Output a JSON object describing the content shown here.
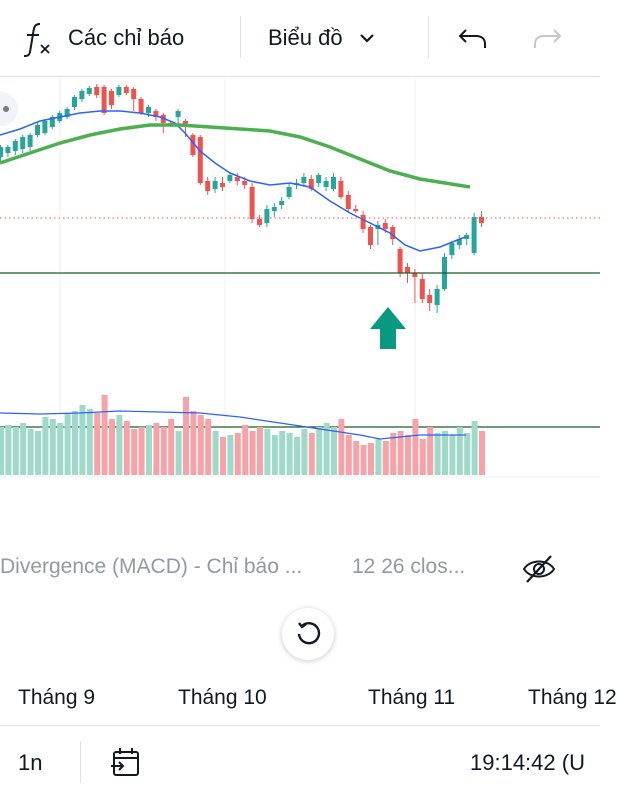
{
  "toolbar": {
    "indicators_label": "Các chỉ báo",
    "chart_type_label": "Biểu đồ",
    "icons": [
      "function-icon",
      "chevron-down-icon",
      "undo-icon",
      "redo-icon"
    ]
  },
  "chart_data": {
    "type": "candlestick",
    "price_scale_labels_visible": false,
    "series": [
      {
        "name": "",
        "kind": "ma",
        "color": "#2962ff"
      },
      {
        "name": "",
        "kind": "ma",
        "color": "#4caf50"
      },
      {
        "name": "",
        "kind": "volume",
        "up_color": "#9fd9c8",
        "down_color": "#f5a3a8"
      }
    ],
    "annotations": [
      {
        "kind": "horizontal-line",
        "color": "#1b5e20"
      },
      {
        "kind": "horizontal-line-volume",
        "color": "#1b5e20"
      },
      {
        "kind": "arrow-up",
        "color": "#089981"
      }
    ],
    "x_tick_labels": [
      "Tháng 9",
      "Tháng 10",
      "Tháng 11",
      "Tháng 12"
    ]
  },
  "macd": {
    "title": "Divergence (MACD) - Chỉ báo ...",
    "params": "12 26 clos...",
    "eye_icon": "eye-off-icon"
  },
  "reset_icon": "reset-icon",
  "bottom": {
    "interval": "1n",
    "goto_icon": "calendar-goto-icon",
    "clock": "19:14:42 (U"
  }
}
